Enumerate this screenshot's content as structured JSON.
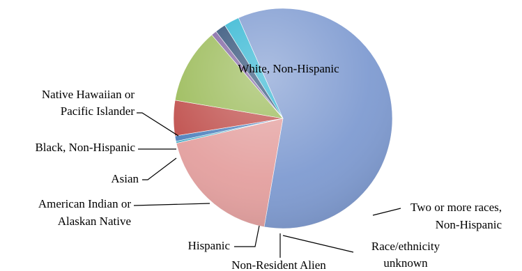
{
  "chart_data": {
    "type": "pie",
    "title": "",
    "slices": [
      {
        "label_lines": [
          "White, Non-Hispanic"
        ],
        "value": 60.6,
        "color": "#7f9bd1"
      },
      {
        "label_lines": [
          "Two or more races,",
          "Non-Hispanic"
        ],
        "value": 19.0,
        "color": "#e4a09f"
      },
      {
        "label_lines": [
          "Race/ethnicity",
          "unknown"
        ],
        "value": 0.3,
        "color": "#4bacc6"
      },
      {
        "label_lines": [
          "Non-Resident Alien"
        ],
        "value": 0.8,
        "color": "#4f81bd"
      },
      {
        "label_lines": [
          "Hispanic"
        ],
        "value": 5.3,
        "color": "#c0504d"
      },
      {
        "label_lines": [
          "American Indian or",
          "Alaskan Native"
        ],
        "value": 11.3,
        "color": "#9bbb59"
      },
      {
        "label_lines": [
          "Asian"
        ],
        "value": 0.8,
        "color": "#8064a2"
      },
      {
        "label_lines": [
          "Black, Non-Hispanic"
        ],
        "value": 1.6,
        "color": "#2c4d75"
      },
      {
        "label_lines": [
          "Native Hawaiian or",
          "Pacific Islander"
        ],
        "value": 2.3,
        "color": "#2fb5d2"
      }
    ]
  }
}
